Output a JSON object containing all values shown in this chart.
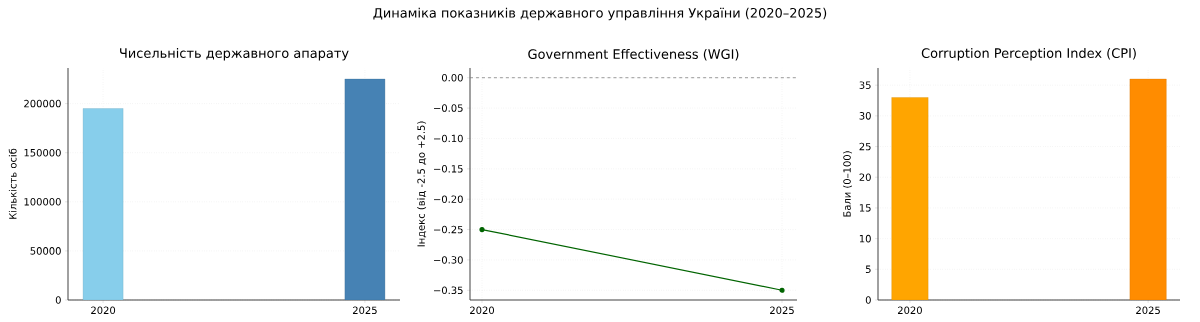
{
  "chart_data": [
    {
      "type": "other",
      "title": "Динаміка показників державного управління України (2020–2025)"
    },
    {
      "type": "bar",
      "title": "Чисельність державного апарату",
      "ylabel": "Кількість осіб",
      "categories": [
        "2020",
        "2025"
      ],
      "values": [
        195000,
        225000
      ],
      "colors": [
        "#87ceeb",
        "#4682b4"
      ],
      "ylim": [
        0,
        236250
      ],
      "yticks": [
        0,
        50000,
        100000,
        150000,
        200000
      ],
      "grid": true
    },
    {
      "type": "line",
      "title": "Government Effectiveness (WGI)",
      "ylabel": "Індекс (від -2.5 до +2.5)",
      "x": [
        2020,
        2025
      ],
      "values": [
        -0.25,
        -0.35
      ],
      "color": "#006400",
      "marker": "circle",
      "line_style": "solid",
      "xlim": [
        2019.8,
        2025.25
      ],
      "xticks": [
        2020,
        2025
      ],
      "ylim": [
        -0.366,
        0.016
      ],
      "yticks": [
        {
          "value": 0,
          "label": "0.00"
        },
        {
          "value": -0.05,
          "label": "−0.05"
        },
        {
          "value": -0.1,
          "label": "−0.10"
        },
        {
          "value": -0.15,
          "label": "−0.15"
        },
        {
          "value": -0.2,
          "label": "−0.20"
        },
        {
          "value": -0.25,
          "label": "−0.25"
        },
        {
          "value": -0.3,
          "label": "−0.30"
        },
        {
          "value": -0.35,
          "label": "−0.35"
        }
      ],
      "ref_lines": [
        {
          "axis": "y",
          "value": 0,
          "color": "#808080",
          "line_style": "dashed"
        }
      ],
      "grid": true
    },
    {
      "type": "bar",
      "title": "Corruption Perception Index (CPI)",
      "ylabel": "Бали (0–100)",
      "categories": [
        "2020",
        "2025"
      ],
      "values": [
        33,
        36
      ],
      "colors": [
        "#ffa500",
        "#ff8c00"
      ],
      "ylim": [
        0,
        37.8
      ],
      "yticks": [
        0,
        5,
        10,
        15,
        20,
        25,
        30,
        35
      ],
      "grid": true
    }
  ]
}
